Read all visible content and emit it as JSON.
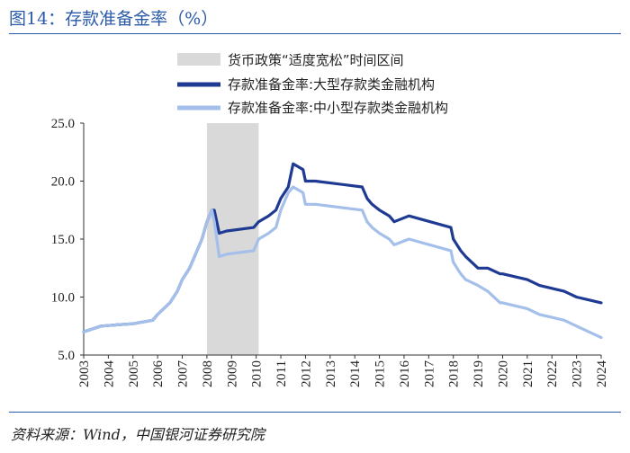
{
  "title": "图14：存款准备金率（%）",
  "source": "资料来源：Wind，中国银河证券研究院",
  "chart_data": {
    "type": "line",
    "title": "存款准备金率（%）",
    "xlabel": "",
    "ylabel": "",
    "ylim": [
      5.0,
      25.0
    ],
    "yticks": [
      "5.0",
      "10.0",
      "15.0",
      "20.0",
      "25.0"
    ],
    "xticks": [
      "2003",
      "2004",
      "2005",
      "2006",
      "2007",
      "2008",
      "2009",
      "2010",
      "2011",
      "2012",
      "2013",
      "2014",
      "2015",
      "2016",
      "2017",
      "2018",
      "2019",
      "2020",
      "2021",
      "2022",
      "2023",
      "2024"
    ],
    "xlim": [
      2003,
      2024
    ],
    "grid": false,
    "legend_position": "top",
    "shaded_region": {
      "label": "货币政策“适度宽松”时间区间",
      "x_start": 2008.0,
      "x_end": 2010.1,
      "color": "#d9d9d9"
    },
    "series": [
      {
        "name": "存款准备金率:大型存款类金融机构",
        "color": "#1f3a93",
        "x": [
          2003.0,
          2003.7,
          2004.3,
          2005.0,
          2005.8,
          2006.0,
          2006.5,
          2006.8,
          2007.0,
          2007.3,
          2007.5,
          2007.7,
          2007.8,
          2008.0,
          2008.2,
          2008.3,
          2008.5,
          2008.8,
          2009.9,
          2010.1,
          2010.5,
          2010.8,
          2011.0,
          2011.3,
          2011.5,
          2011.9,
          2012.0,
          2012.4,
          2014.3,
          2014.5,
          2014.7,
          2015.0,
          2015.4,
          2015.6,
          2016.2,
          2017.9,
          2018.0,
          2018.3,
          2018.5,
          2019.0,
          2019.4,
          2019.9,
          2020.0,
          2021.0,
          2021.5,
          2022.0,
          2022.5,
          2023.0,
          2023.5,
          2024.0
        ],
        "values": [
          7.0,
          7.5,
          7.6,
          7.7,
          8.0,
          8.5,
          9.5,
          10.5,
          11.5,
          12.5,
          13.5,
          14.5,
          15.0,
          16.5,
          17.5,
          17.5,
          15.5,
          15.7,
          16.0,
          16.5,
          17.0,
          17.5,
          18.5,
          19.5,
          21.5,
          21.0,
          20.0,
          20.0,
          19.5,
          18.5,
          18.0,
          17.5,
          17.0,
          16.5,
          17.0,
          16.0,
          15.0,
          14.0,
          13.5,
          12.5,
          12.5,
          12.0,
          12.0,
          11.5,
          11.0,
          10.75,
          10.5,
          10.0,
          9.75,
          9.5
        ]
      },
      {
        "name": "存款准备金率:中小型存款类金融机构",
        "color": "#a4bfea",
        "x": [
          2003.0,
          2003.7,
          2004.3,
          2005.0,
          2005.8,
          2006.0,
          2006.5,
          2006.8,
          2007.0,
          2007.3,
          2007.5,
          2007.7,
          2007.8,
          2008.0,
          2008.2,
          2008.3,
          2008.5,
          2008.8,
          2009.9,
          2010.1,
          2010.5,
          2010.8,
          2011.0,
          2011.3,
          2011.5,
          2011.9,
          2012.0,
          2012.4,
          2014.3,
          2014.5,
          2014.7,
          2015.0,
          2015.4,
          2015.6,
          2016.2,
          2017.9,
          2018.0,
          2018.3,
          2018.5,
          2019.0,
          2019.4,
          2019.9,
          2020.0,
          2021.0,
          2021.5,
          2022.0,
          2022.5,
          2023.0,
          2023.5,
          2024.0
        ],
        "values": [
          7.0,
          7.5,
          7.6,
          7.7,
          8.0,
          8.5,
          9.5,
          10.5,
          11.5,
          12.5,
          13.5,
          14.5,
          15.0,
          16.5,
          17.5,
          16.5,
          13.5,
          13.7,
          14.0,
          15.0,
          15.5,
          16.0,
          17.5,
          19.0,
          19.5,
          19.0,
          18.0,
          18.0,
          17.5,
          16.5,
          16.0,
          15.5,
          15.0,
          14.5,
          15.0,
          14.0,
          13.0,
          12.0,
          11.5,
          11.0,
          10.5,
          9.5,
          9.5,
          9.0,
          8.5,
          8.25,
          8.0,
          7.5,
          7.0,
          6.5
        ]
      }
    ]
  }
}
